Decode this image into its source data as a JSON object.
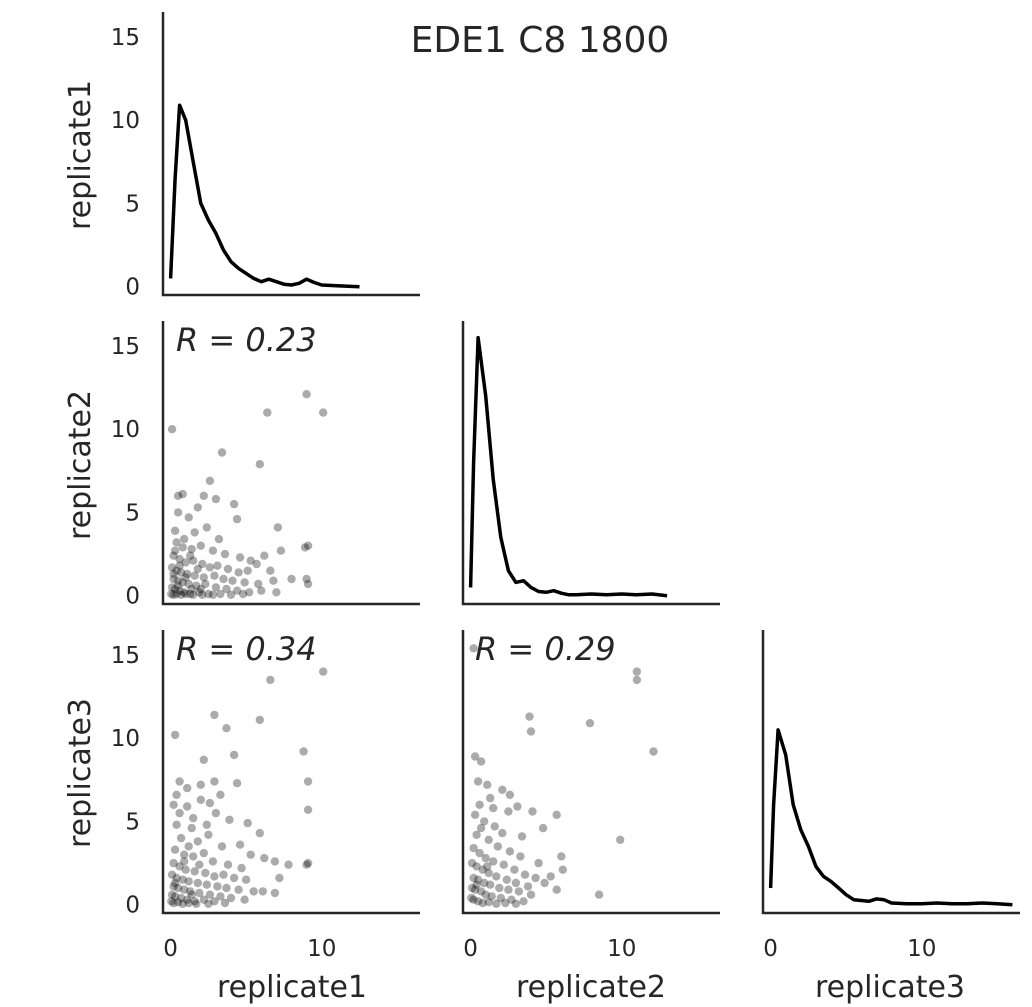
{
  "chart_data": {
    "type": "scatter",
    "title": "EDE1 C8 1800",
    "variables": [
      "replicate1",
      "replicate2",
      "replicate3"
    ],
    "axis_range": [
      -0.5,
      16.5
    ],
    "y_ticks": [
      0,
      5,
      10,
      15
    ],
    "x_ticks": [
      0,
      10
    ],
    "grid": false,
    "diagonal": [
      {
        "variable": "replicate1",
        "type": "kde",
        "x": [
          0,
          0.3,
          0.6,
          1.0,
          1.5,
          2.0,
          2.5,
          3.0,
          3.5,
          4.0,
          4.5,
          5.0,
          5.5,
          6.0,
          6.5,
          7.0,
          7.5,
          8.0,
          8.5,
          9.0,
          9.5,
          10.0,
          11.0,
          12.5
        ],
        "y": [
          0.5,
          6.5,
          10.9,
          10.0,
          7.5,
          5.0,
          4.0,
          3.2,
          2.2,
          1.5,
          1.1,
          0.8,
          0.5,
          0.3,
          0.45,
          0.3,
          0.15,
          0.1,
          0.2,
          0.45,
          0.25,
          0.1,
          0.05,
          0
        ]
      },
      {
        "variable": "replicate2",
        "type": "kde",
        "x": [
          0,
          0.2,
          0.5,
          1.0,
          1.5,
          2.0,
          2.5,
          3.0,
          3.5,
          4.0,
          4.5,
          5.0,
          5.5,
          6.0,
          6.5,
          7.0,
          8.0,
          9.0,
          10.0,
          11.0,
          12.0,
          13.0
        ],
        "y": [
          0.5,
          8.0,
          15.5,
          12.0,
          7.0,
          3.5,
          1.5,
          0.8,
          0.9,
          0.5,
          0.25,
          0.2,
          0.3,
          0.15,
          0.05,
          0.05,
          0.1,
          0.05,
          0.1,
          0.05,
          0.1,
          0
        ]
      },
      {
        "variable": "replicate3",
        "type": "kde",
        "x": [
          0,
          0.2,
          0.5,
          1.0,
          1.5,
          2.0,
          2.5,
          3.0,
          3.5,
          4.0,
          4.5,
          5.0,
          5.5,
          6.0,
          6.5,
          7.0,
          7.5,
          8.0,
          9.0,
          10.0,
          11.0,
          12.0,
          13.0,
          14.0,
          15.0,
          16.0
        ],
        "y": [
          1.0,
          6.0,
          10.5,
          9.0,
          6.0,
          4.5,
          3.5,
          2.3,
          1.7,
          1.4,
          1.0,
          0.6,
          0.3,
          0.25,
          0.2,
          0.35,
          0.3,
          0.1,
          0.05,
          0.05,
          0.1,
          0.05,
          0.05,
          0.1,
          0.05,
          0
        ]
      }
    ],
    "panels": [
      {
        "x_var": "replicate1",
        "y_var": "replicate2",
        "annotation": "R = 0.23",
        "points": [
          [
            10.1,
            11.0
          ],
          [
            9.0,
            12.1
          ],
          [
            6.4,
            11.0
          ],
          [
            0.1,
            10.0
          ],
          [
            3.4,
            8.6
          ],
          [
            5.9,
            7.9
          ],
          [
            2.6,
            6.9
          ],
          [
            0.5,
            6.0
          ],
          [
            0.8,
            6.1
          ],
          [
            1.8,
            5.3
          ],
          [
            2.2,
            6.0
          ],
          [
            3.0,
            5.8
          ],
          [
            4.2,
            5.5
          ],
          [
            4.4,
            4.6
          ],
          [
            7.1,
            4.1
          ],
          [
            9.1,
            3.0
          ],
          [
            8.9,
            2.9
          ],
          [
            7.3,
            2.7
          ],
          [
            6.2,
            2.4
          ],
          [
            5.7,
            1.9
          ],
          [
            6.6,
            1.5
          ],
          [
            9.0,
            1.0
          ],
          [
            9.1,
            0.7
          ],
          [
            8.0,
            1.0
          ],
          [
            0.5,
            5.0
          ],
          [
            1.2,
            4.7
          ],
          [
            0.3,
            3.9
          ],
          [
            1.6,
            3.8
          ],
          [
            2.4,
            4.1
          ],
          [
            3.2,
            3.4
          ],
          [
            0.4,
            3.2
          ],
          [
            0.8,
            2.9
          ],
          [
            1.4,
            2.8
          ],
          [
            2.0,
            3.0
          ],
          [
            2.8,
            2.7
          ],
          [
            3.6,
            2.5
          ],
          [
            4.6,
            2.3
          ],
          [
            5.3,
            2.1
          ],
          [
            0.2,
            2.4
          ],
          [
            0.6,
            2.2
          ],
          [
            1.0,
            2.0
          ],
          [
            1.5,
            2.1
          ],
          [
            2.1,
            1.9
          ],
          [
            2.6,
            1.7
          ],
          [
            3.1,
            1.8
          ],
          [
            3.8,
            1.6
          ],
          [
            4.5,
            1.4
          ],
          [
            5.1,
            1.5
          ],
          [
            0.1,
            1.7
          ],
          [
            0.4,
            1.5
          ],
          [
            0.7,
            1.4
          ],
          [
            1.1,
            1.3
          ],
          [
            1.6,
            1.2
          ],
          [
            2.2,
            1.1
          ],
          [
            2.9,
            1.2
          ],
          [
            3.5,
            1.0
          ],
          [
            4.1,
            0.9
          ],
          [
            4.9,
            0.8
          ],
          [
            5.8,
            0.7
          ],
          [
            6.8,
            0.9
          ],
          [
            0.2,
            1.0
          ],
          [
            0.5,
            0.9
          ],
          [
            0.8,
            0.8
          ],
          [
            1.2,
            0.7
          ],
          [
            1.7,
            0.6
          ],
          [
            2.3,
            0.7
          ],
          [
            3.0,
            0.5
          ],
          [
            3.7,
            0.4
          ],
          [
            4.4,
            0.3
          ],
          [
            5.2,
            0.2
          ],
          [
            6.0,
            0.3
          ],
          [
            7.0,
            0.2
          ],
          [
            0.1,
            0.5
          ],
          [
            0.3,
            0.4
          ],
          [
            0.6,
            0.3
          ],
          [
            0.9,
            0.2
          ],
          [
            1.3,
            0.1
          ],
          [
            1.9,
            0.2
          ],
          [
            2.5,
            0.1
          ],
          [
            3.3,
            0.1
          ],
          [
            4.0,
            0.05
          ],
          [
            4.8,
            0.1
          ],
          [
            0.05,
            0.1
          ],
          [
            0.2,
            0.05
          ],
          [
            0.4,
            0.1
          ],
          [
            0.7,
            0.05
          ],
          [
            1.0,
            0.1
          ],
          [
            1.5,
            0.05
          ],
          [
            2.1,
            0.05
          ],
          [
            2.8,
            0.05
          ],
          [
            0.3,
            2.7
          ],
          [
            0.9,
            3.4
          ],
          [
            1.3,
            2.4
          ],
          [
            0.6,
            1.8
          ],
          [
            1.8,
            1.6
          ],
          [
            0.2,
            1.3
          ],
          [
            1.0,
            1.1
          ],
          [
            1.4,
            0.4
          ],
          [
            0.5,
            0.6
          ],
          [
            2.0,
            0.4
          ]
        ]
      },
      {
        "x_var": "replicate1",
        "y_var": "replicate3",
        "annotation": "R = 0.34",
        "points": [
          [
            10.1,
            14.0
          ],
          [
            6.6,
            13.5
          ],
          [
            2.9,
            11.4
          ],
          [
            5.9,
            11.1
          ],
          [
            0.3,
            10.2
          ],
          [
            3.7,
            10.6
          ],
          [
            4.2,
            9.0
          ],
          [
            8.8,
            9.2
          ],
          [
            9.1,
            7.4
          ],
          [
            9.1,
            5.7
          ],
          [
            2.2,
            8.7
          ],
          [
            0.6,
            7.4
          ],
          [
            1.1,
            7.0
          ],
          [
            2.0,
            7.2
          ],
          [
            2.9,
            7.4
          ],
          [
            3.3,
            6.6
          ],
          [
            4.4,
            7.3
          ],
          [
            0.2,
            6.0
          ],
          [
            2.0,
            6.3
          ],
          [
            2.6,
            6.1
          ],
          [
            1.1,
            5.9
          ],
          [
            3.0,
            5.5
          ],
          [
            3.9,
            5.1
          ],
          [
            5.1,
            4.9
          ],
          [
            5.9,
            4.3
          ],
          [
            4.6,
            3.6
          ],
          [
            5.3,
            3.0
          ],
          [
            6.2,
            2.8
          ],
          [
            6.9,
            2.6
          ],
          [
            7.8,
            2.4
          ],
          [
            9.0,
            2.4
          ],
          [
            9.1,
            2.5
          ],
          [
            7.2,
            1.6
          ],
          [
            6.1,
            0.8
          ],
          [
            6.9,
            0.7
          ],
          [
            0.4,
            4.8
          ],
          [
            1.4,
            4.6
          ],
          [
            0.7,
            4.0
          ],
          [
            1.8,
            3.8
          ],
          [
            2.5,
            4.2
          ],
          [
            3.4,
            3.5
          ],
          [
            0.3,
            3.3
          ],
          [
            0.9,
            3.0
          ],
          [
            1.5,
            2.9
          ],
          [
            2.2,
            3.1
          ],
          [
            2.8,
            2.6
          ],
          [
            3.8,
            2.4
          ],
          [
            4.7,
            2.2
          ],
          [
            0.2,
            2.5
          ],
          [
            0.6,
            2.3
          ],
          [
            1.0,
            2.1
          ],
          [
            1.6,
            2.0
          ],
          [
            2.3,
            1.9
          ],
          [
            2.9,
            1.7
          ],
          [
            3.5,
            1.8
          ],
          [
            4.2,
            1.6
          ],
          [
            5.0,
            1.5
          ],
          [
            0.1,
            1.8
          ],
          [
            0.4,
            1.6
          ],
          [
            0.8,
            1.5
          ],
          [
            1.2,
            1.4
          ],
          [
            1.8,
            1.3
          ],
          [
            2.4,
            1.2
          ],
          [
            3.1,
            1.1
          ],
          [
            3.7,
            1.0
          ],
          [
            4.5,
            0.9
          ],
          [
            5.5,
            0.8
          ],
          [
            0.2,
            1.1
          ],
          [
            0.5,
            1.0
          ],
          [
            0.9,
            0.9
          ],
          [
            1.3,
            0.8
          ],
          [
            1.9,
            0.7
          ],
          [
            2.6,
            0.6
          ],
          [
            3.3,
            0.5
          ],
          [
            4.0,
            0.4
          ],
          [
            4.9,
            0.3
          ],
          [
            0.1,
            0.6
          ],
          [
            0.3,
            0.5
          ],
          [
            0.7,
            0.4
          ],
          [
            1.1,
            0.3
          ],
          [
            1.6,
            0.2
          ],
          [
            2.2,
            0.3
          ],
          [
            2.9,
            0.2
          ],
          [
            3.6,
            0.1
          ],
          [
            0.05,
            0.2
          ],
          [
            0.2,
            0.1
          ],
          [
            0.5,
            0.15
          ],
          [
            0.8,
            0.05
          ],
          [
            1.2,
            0.1
          ],
          [
            1.7,
            0.05
          ],
          [
            2.5,
            0.05
          ],
          [
            0.4,
            6.6
          ],
          [
            1.5,
            5.2
          ],
          [
            0.6,
            5.5
          ],
          [
            2.4,
            4.8
          ],
          [
            1.2,
            3.5
          ],
          [
            0.9,
            2.6
          ],
          [
            1.9,
            2.4
          ],
          [
            0.3,
            1.3
          ],
          [
            1.4,
            0.6
          ]
        ]
      },
      {
        "x_var": "replicate2",
        "y_var": "replicate3",
        "annotation": "R = 0.29",
        "points": [
          [
            11.0,
            14.0
          ],
          [
            11.0,
            13.5
          ],
          [
            12.1,
            9.2
          ],
          [
            3.9,
            11.3
          ],
          [
            4.0,
            10.4
          ],
          [
            7.9,
            10.9
          ],
          [
            0.2,
            15.4
          ],
          [
            0.3,
            8.9
          ],
          [
            0.7,
            8.6
          ],
          [
            1.1,
            7.2
          ],
          [
            2.6,
            6.6
          ],
          [
            2.1,
            6.9
          ],
          [
            0.5,
            7.4
          ],
          [
            1.3,
            6.4
          ],
          [
            2.5,
            5.6
          ],
          [
            3.1,
            5.9
          ],
          [
            4.1,
            5.6
          ],
          [
            5.7,
            5.4
          ],
          [
            4.8,
            4.6
          ],
          [
            3.4,
            4.1
          ],
          [
            9.9,
            3.9
          ],
          [
            6.0,
            2.9
          ],
          [
            6.1,
            2.1
          ],
          [
            4.5,
            2.5
          ],
          [
            5.3,
            1.7
          ],
          [
            4.9,
            1.3
          ],
          [
            5.7,
            0.9
          ],
          [
            8.5,
            0.6
          ],
          [
            0.3,
            5.4
          ],
          [
            0.9,
            5.0
          ],
          [
            1.6,
            4.7
          ],
          [
            2.1,
            4.3
          ],
          [
            0.4,
            4.2
          ],
          [
            1.2,
            3.9
          ],
          [
            1.8,
            3.5
          ],
          [
            2.6,
            3.2
          ],
          [
            3.3,
            2.9
          ],
          [
            0.2,
            3.4
          ],
          [
            0.6,
            3.1
          ],
          [
            1.0,
            2.8
          ],
          [
            1.5,
            2.6
          ],
          [
            2.2,
            2.4
          ],
          [
            2.9,
            2.1
          ],
          [
            3.6,
            1.8
          ],
          [
            4.3,
            1.6
          ],
          [
            0.1,
            2.5
          ],
          [
            0.4,
            2.3
          ],
          [
            0.8,
            2.1
          ],
          [
            1.2,
            1.9
          ],
          [
            1.7,
            1.7
          ],
          [
            2.4,
            1.5
          ],
          [
            3.0,
            1.3
          ],
          [
            3.8,
            1.1
          ],
          [
            0.2,
            1.6
          ],
          [
            0.5,
            1.5
          ],
          [
            0.9,
            1.3
          ],
          [
            1.3,
            1.2
          ],
          [
            1.9,
            1.0
          ],
          [
            2.5,
            0.9
          ],
          [
            3.2,
            0.8
          ],
          [
            4.0,
            0.6
          ],
          [
            0.1,
            1.0
          ],
          [
            0.3,
            0.9
          ],
          [
            0.7,
            0.8
          ],
          [
            1.0,
            0.6
          ],
          [
            1.4,
            0.5
          ],
          [
            2.0,
            0.4
          ],
          [
            2.7,
            0.3
          ],
          [
            3.5,
            0.2
          ],
          [
            0.05,
            0.4
          ],
          [
            0.2,
            0.3
          ],
          [
            0.5,
            0.2
          ],
          [
            0.8,
            0.1
          ],
          [
            1.2,
            0.15
          ],
          [
            1.7,
            0.05
          ],
          [
            2.3,
            0.1
          ],
          [
            3.0,
            0.05
          ],
          [
            0.6,
            6.0
          ],
          [
            1.5,
            5.8
          ],
          [
            0.4,
            1.2
          ],
          [
            1.1,
            2.3
          ],
          [
            0.7,
            4.6
          ]
        ]
      }
    ]
  }
}
